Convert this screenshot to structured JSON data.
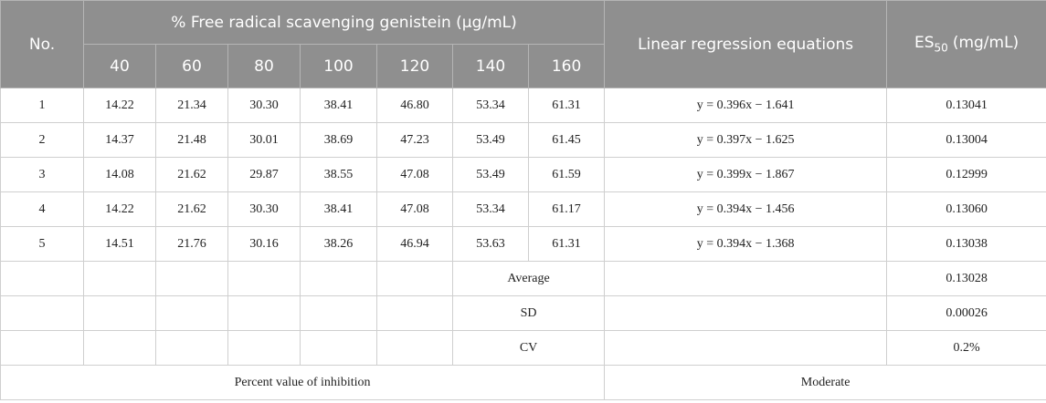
{
  "table": {
    "header": {
      "no": "No.",
      "group": "% Free radical scavenging genistein (μg/mL)",
      "concentrations": [
        "40",
        "60",
        "80",
        "100",
        "120",
        "140",
        "160"
      ],
      "regression": "Linear regression equations",
      "es50": {
        "main": "ES",
        "sub": "50",
        "unit": "(mg/mL)"
      }
    },
    "rows": [
      {
        "no": "1",
        "values": [
          "14.22",
          "21.34",
          "30.30",
          "38.41",
          "46.80",
          "53.34",
          "61.31"
        ],
        "equation": "y = 0.396x − 1.641",
        "es50": "0.13041"
      },
      {
        "no": "2",
        "values": [
          "14.37",
          "21.48",
          "30.01",
          "38.69",
          "47.23",
          "53.49",
          "61.45"
        ],
        "equation": "y = 0.397x − 1.625",
        "es50": "0.13004"
      },
      {
        "no": "3",
        "values": [
          "14.08",
          "21.62",
          "29.87",
          "38.55",
          "47.08",
          "53.49",
          "61.59"
        ],
        "equation": "y = 0.399x − 1.867",
        "es50": "0.12999"
      },
      {
        "no": "4",
        "values": [
          "14.22",
          "21.62",
          "30.30",
          "38.41",
          "47.08",
          "53.34",
          "61.17"
        ],
        "equation": "y = 0.394x − 1.456",
        "es50": "0.13060"
      },
      {
        "no": "5",
        "values": [
          "14.51",
          "21.76",
          "30.16",
          "38.26",
          "46.94",
          "53.63",
          "61.31"
        ],
        "equation": "y = 0.394x − 1.368",
        "es50": "0.13038"
      }
    ],
    "stats": [
      {
        "label": "Average",
        "es50": "0.13028"
      },
      {
        "label": "SD",
        "es50": "0.00026"
      },
      {
        "label": "CV",
        "es50": "0.2%"
      }
    ],
    "footer": {
      "left": "Percent value of inhibition",
      "right": "Moderate"
    }
  }
}
